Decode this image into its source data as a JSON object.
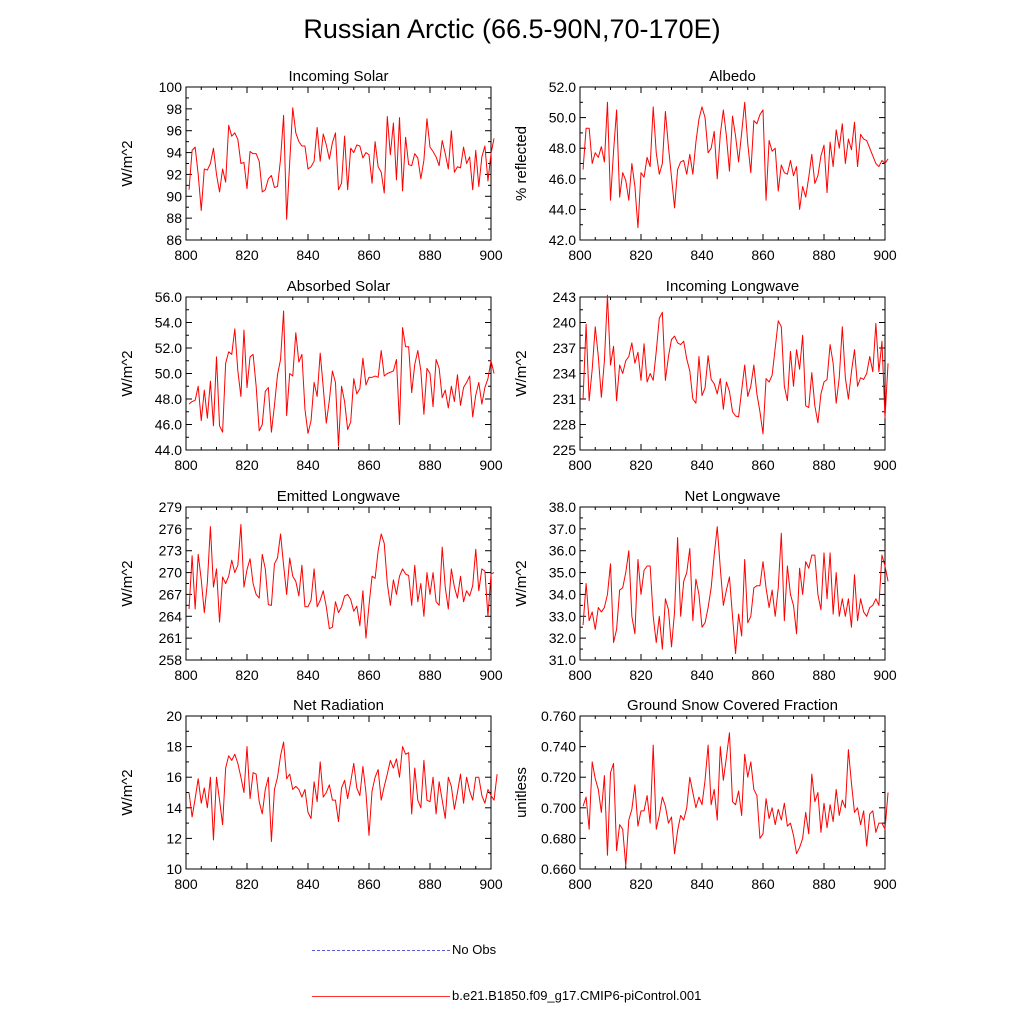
{
  "title": "Russian Arctic (66.5-90N,70-170E)",
  "legend": [
    {
      "label": "No Obs",
      "color": "#5a5ad6",
      "style": "dashed"
    },
    {
      "label": "b.e21.B1850.f09_g17.CMIP6-piControl.001",
      "color": "#ff0000",
      "style": "solid"
    }
  ],
  "chart_data": [
    {
      "type": "line",
      "title": "Incoming Solar",
      "ylabel": "W/m^2",
      "xlim": [
        800,
        900
      ],
      "ylim": [
        86,
        100
      ],
      "xticks": [
        800,
        820,
        840,
        860,
        880,
        900
      ],
      "yticks": [
        86,
        88,
        90,
        92,
        94,
        96,
        98,
        100
      ],
      "ytick_labels": [
        "86",
        "88",
        "90",
        "92",
        "94",
        "96",
        "98",
        "100"
      ],
      "x_start": 801,
      "color": "#ff0000",
      "values": [
        90.6,
        94.2,
        94.5,
        92.0,
        88.7,
        92.5,
        92.4,
        93.0,
        94.4,
        92.0,
        90.4,
        92.5,
        91.3,
        96.5,
        95.5,
        95.8,
        95.2,
        93.0,
        93.1,
        90.7,
        94.1,
        93.9,
        93.9,
        93.2,
        90.4,
        90.6,
        91.6,
        91.9,
        90.8,
        90.9,
        93.4,
        97.4,
        87.9,
        93.1,
        98.1,
        95.8,
        95.0,
        94.6,
        94.6,
        92.5,
        92.7,
        93.2,
        96.3,
        93.2,
        95.7,
        94.7,
        93.4,
        94.9,
        95.8,
        90.6,
        91.2,
        95.5,
        90.6,
        94.4,
        94.0,
        94.7,
        94.6,
        93.5,
        94.0,
        93.8,
        91.2,
        95.0,
        92.7,
        92.2,
        90.3,
        97.3,
        93.8,
        96.7,
        91.5,
        97.2,
        90.5,
        95.4,
        92.9,
        92.8,
        93.9,
        93.5,
        91.6,
        93.3,
        97.1,
        94.5,
        94.1,
        93.6,
        92.8,
        95.1,
        93.9,
        92.5,
        96.0,
        92.2,
        92.7,
        92.6,
        94.5,
        93.0,
        93.6,
        90.6,
        94.2,
        90.9,
        93.6,
        94.6,
        91.4,
        93.9,
        95.3
      ]
    },
    {
      "type": "line",
      "title": "Albedo",
      "ylabel": "% reflected",
      "xlim": [
        800,
        900
      ],
      "ylim": [
        42,
        52
      ],
      "xticks": [
        800,
        820,
        840,
        860,
        880,
        900
      ],
      "yticks": [
        42,
        44,
        46,
        48,
        50,
        52
      ],
      "ytick_labels": [
        "42.0",
        "44.0",
        "46.0",
        "48.0",
        "50.0",
        "52.0"
      ],
      "x_start": 801,
      "color": "#ff0000",
      "values": [
        46.6,
        49.3,
        49.3,
        47.0,
        47.7,
        47.4,
        48.1,
        47.1,
        51.0,
        44.6,
        47.8,
        50.5,
        44.8,
        46.4,
        45.9,
        44.6,
        47.0,
        45.5,
        42.8,
        46.4,
        46.1,
        47.4,
        46.8,
        50.7,
        47.7,
        46.3,
        47.0,
        50.4,
        48.1,
        46.1,
        44.1,
        46.6,
        47.1,
        47.2,
        46.3,
        47.6,
        46.3,
        48.4,
        49.9,
        50.7,
        50.0,
        47.7,
        48.0,
        49.1,
        46.0,
        48.9,
        50.5,
        48.8,
        46.5,
        50.1,
        48.8,
        47.1,
        49.0,
        51.0,
        48.3,
        46.4,
        49.8,
        49.6,
        50.2,
        50.5,
        44.6,
        48.5,
        47.8,
        48.0,
        45.2,
        46.9,
        46.4,
        46.3,
        47.2,
        46.2,
        46.8,
        44.0,
        45.5,
        44.8,
        46.1,
        47.6,
        45.7,
        46.2,
        47.5,
        48.2,
        45.1,
        48.4,
        46.8,
        49.2,
        48.0,
        49.6,
        47.0,
        48.6,
        47.9,
        49.7,
        46.8,
        48.9,
        48.6,
        48.5,
        48.0,
        47.5,
        47.0,
        46.8,
        47.2,
        47.0,
        47.3
      ]
    },
    {
      "type": "line",
      "title": "Absorbed Solar",
      "ylabel": "W/m^2",
      "xlim": [
        800,
        900
      ],
      "ylim": [
        44,
        56
      ],
      "xticks": [
        800,
        820,
        840,
        860,
        880,
        900
      ],
      "yticks": [
        44,
        46,
        48,
        50,
        52,
        54,
        56
      ],
      "ytick_labels": [
        "44.0",
        "46.0",
        "48.0",
        "50.0",
        "52.0",
        "54.0",
        "56.0"
      ],
      "x_start": 801,
      "color": "#ff0000",
      "values": [
        47.6,
        47.8,
        47.9,
        49.0,
        46.3,
        48.7,
        46.5,
        49.4,
        45.9,
        51.3,
        45.9,
        45.4,
        50.8,
        51.7,
        51.5,
        53.5,
        50.2,
        48.2,
        53.4,
        48.9,
        51.3,
        51.5,
        49.0,
        45.5,
        46.0,
        48.6,
        48.9,
        45.4,
        47.5,
        49.9,
        51.1,
        54.9,
        46.7,
        50.0,
        49.8,
        53.2,
        50.9,
        51.5,
        47.2,
        45.3,
        46.3,
        49.3,
        48.2,
        51.6,
        48.9,
        46.1,
        47.9,
        50.2,
        49.3,
        44.3,
        49.0,
        47.8,
        45.6,
        46.2,
        49.6,
        48.4,
        48.8,
        51.2,
        49.1,
        49.7,
        49.7,
        49.8,
        49.7,
        51.8,
        49.8,
        50.0,
        50.1,
        50.2,
        51.1,
        46.0,
        53.6,
        52.1,
        52.1,
        48.5,
        50.7,
        51.8,
        50.2,
        46.8,
        50.4,
        50.0,
        47.4,
        51.1,
        50.4,
        48.1,
        48.7,
        47.3,
        49.0,
        47.8,
        49.9,
        47.5,
        48.9,
        49.3,
        49.8,
        46.6,
        48.3,
        49.3,
        47.6,
        48.9,
        49.6,
        51.0,
        50.0
      ]
    },
    {
      "type": "line",
      "title": "Incoming Longwave",
      "ylabel": "W/m^2",
      "xlim": [
        800,
        900
      ],
      "ylim": [
        225,
        243
      ],
      "xticks": [
        800,
        820,
        840,
        860,
        880,
        900
      ],
      "yticks": [
        225,
        228,
        231,
        234,
        237,
        240,
        243
      ],
      "ytick_labels": [
        "225",
        "228",
        "231",
        "234",
        "237",
        "240",
        "243"
      ],
      "x_start": 801,
      "color": "#ff0000",
      "values": [
        231.0,
        239.8,
        230.8,
        234.5,
        239.5,
        236.0,
        231.2,
        235.5,
        243.2,
        235.0,
        237.2,
        230.8,
        235.0,
        234.0,
        235.5,
        236.0,
        237.6,
        235.2,
        236.5,
        233.2,
        237.5,
        233.0,
        234.0,
        233.2,
        236.6,
        240.5,
        241.2,
        233.2,
        236.0,
        238.0,
        238.4,
        237.6,
        237.4,
        237.8,
        235.7,
        234.3,
        231.0,
        230.5,
        236.0,
        231.4,
        232.3,
        236.1,
        233.3,
        232.8,
        231.6,
        233.4,
        229.8,
        233.0,
        231.9,
        229.5,
        229.0,
        228.9,
        232.0,
        235.0,
        231.3,
        232.5,
        235.0,
        231.6,
        229.5,
        226.9,
        233.4,
        233.0,
        233.8,
        237.0,
        240.2,
        239.5,
        232.5,
        230.8,
        236.6,
        232.5,
        236.8,
        234.5,
        238.5,
        230.2,
        230.0,
        234.1,
        230.2,
        228.2,
        231.6,
        233.0,
        233.3,
        237.4,
        235.2,
        230.5,
        233.5,
        239.5,
        233.5,
        231.0,
        234.2,
        236.8,
        232.5,
        233.5,
        233.3,
        234.0,
        236.0,
        234.2,
        239.9,
        234.2,
        237.8,
        228.8,
        235.2
      ]
    },
    {
      "type": "line",
      "title": "Emitted Longwave",
      "ylabel": "W/m^2",
      "xlim": [
        800,
        900
      ],
      "ylim": [
        258,
        279
      ],
      "xticks": [
        800,
        820,
        840,
        860,
        880,
        900
      ],
      "yticks": [
        258,
        261,
        264,
        267,
        270,
        273,
        276,
        279
      ],
      "ytick_labels": [
        "258",
        "261",
        "264",
        "267",
        "270",
        "273",
        "276",
        "279"
      ],
      "x_start": 801,
      "color": "#ff0000",
      "values": [
        265.0,
        272.3,
        265.0,
        272.5,
        269.0,
        264.5,
        268.6,
        276.3,
        268.0,
        270.5,
        263.2,
        269.4,
        268.5,
        269.5,
        271.7,
        270.0,
        271.0,
        276.6,
        268.0,
        270.4,
        271.9,
        268.5,
        267.0,
        266.5,
        272.5,
        270.5,
        265.6,
        265.5,
        271.2,
        272.0,
        275.3,
        271.0,
        267.0,
        272.0,
        269.5,
        268.8,
        266.8,
        271.0,
        265.3,
        265.3,
        266.2,
        270.5,
        265.3,
        266.2,
        267.5,
        265.3,
        262.3,
        262.5,
        266.0,
        264.5,
        265.3,
        266.8,
        267.0,
        266.3,
        264.7,
        265.4,
        262.7,
        267.5,
        261.0,
        265.5,
        269.5,
        269.2,
        273.0,
        275.3,
        274.0,
        268.5,
        265.5,
        269.0,
        267.0,
        269.5,
        270.5,
        269.8,
        269.6,
        265.5,
        271.0,
        266.0,
        268.5,
        264.0,
        270.0,
        267.0,
        270.0,
        266.0,
        265.5,
        273.5,
        268.0,
        265.0,
        270.5,
        268.0,
        266.5,
        269.5,
        266.0,
        267.5,
        266.8,
        268.2,
        273.2,
        267.5,
        270.5,
        270.2,
        264.0,
        269.8,
        270.0
      ]
    },
    {
      "type": "line",
      "title": "Net Longwave",
      "ylabel": "W/m^2",
      "xlim": [
        800,
        900
      ],
      "ylim": [
        31,
        38
      ],
      "xticks": [
        800,
        820,
        840,
        860,
        880,
        900
      ],
      "yticks": [
        31,
        32,
        33,
        34,
        35,
        36,
        37,
        38
      ],
      "ytick_labels": [
        "31.0",
        "32.0",
        "33.0",
        "34.0",
        "35.0",
        "36.0",
        "37.0",
        "38.0"
      ],
      "x_start": 801,
      "color": "#ff0000",
      "values": [
        32.6,
        34.5,
        32.8,
        33.2,
        32.4,
        33.4,
        33.2,
        33.4,
        34.0,
        35.4,
        31.8,
        32.4,
        34.2,
        34.3,
        35.0,
        36.0,
        33.0,
        32.2,
        35.6,
        34.0,
        35.1,
        35.3,
        35.3,
        33.0,
        31.8,
        33.0,
        31.5,
        33.8,
        33.3,
        31.6,
        33.2,
        36.6,
        33.0,
        34.6,
        35.0,
        36.1,
        32.8,
        34.7,
        34.0,
        32.5,
        32.7,
        33.4,
        34.3,
        35.8,
        37.1,
        35.2,
        33.5,
        34.2,
        34.8,
        33.0,
        31.3,
        33.1,
        32.1,
        35.6,
        32.7,
        33.0,
        34.3,
        34.4,
        34.4,
        35.5,
        34.3,
        33.4,
        34.2,
        33.0,
        34.3,
        36.8,
        32.8,
        35.3,
        34.0,
        33.5,
        32.2,
        35.2,
        34.0,
        35.5,
        35.2,
        35.8,
        35.8,
        34.0,
        33.3,
        35.9,
        33.8,
        35.9,
        33.1,
        35.0,
        33.0,
        33.8,
        33.0,
        33.8,
        32.5,
        34.9,
        32.8,
        33.8,
        33.2,
        33.0,
        33.4,
        33.5,
        33.8,
        33.5,
        35.8,
        35.3,
        34.6
      ]
    },
    {
      "type": "line",
      "title": "Net Radiation",
      "ylabel": "W/m^2",
      "xlim": [
        800,
        900
      ],
      "ylim": [
        10,
        20
      ],
      "xticks": [
        800,
        820,
        840,
        860,
        880,
        900
      ],
      "yticks": [
        10,
        12,
        14,
        16,
        18,
        20
      ],
      "ytick_labels": [
        "10",
        "12",
        "14",
        "16",
        "18",
        "20"
      ],
      "x_start": 801,
      "color": "#ff0000",
      "values": [
        15.0,
        13.4,
        14.6,
        15.9,
        14.3,
        15.3,
        14.0,
        16.0,
        11.9,
        16.0,
        14.5,
        12.9,
        16.6,
        17.4,
        17.1,
        17.5,
        16.9,
        16.0,
        15.0,
        18.0,
        14.6,
        16.3,
        16.2,
        14.4,
        13.6,
        15.2,
        16.0,
        11.8,
        15.2,
        16.0,
        17.4,
        18.3,
        15.9,
        16.2,
        15.2,
        15.4,
        15.2,
        14.7,
        15.2,
        13.7,
        13.3,
        15.7,
        14.4,
        17.0,
        14.7,
        15.0,
        15.5,
        14.5,
        14.5,
        13.1,
        15.3,
        15.8,
        14.6,
        15.7,
        16.9,
        15.3,
        14.8,
        16.7,
        15.0,
        12.2,
        15.1,
        16.0,
        16.5,
        14.5,
        15.4,
        16.2,
        17.1,
        16.6,
        17.2,
        16.0,
        18.0,
        17.5,
        17.6,
        13.6,
        16.6,
        14.5,
        14.0,
        17.1,
        14.5,
        14.4,
        16.0,
        13.6,
        15.7,
        14.5,
        13.3,
        16.0,
        15.4,
        13.9,
        15.0,
        16.2,
        14.3,
        16.0,
        15.1,
        14.5,
        16.0,
        16.0,
        14.8,
        14.3,
        15.2,
        14.8,
        14.5,
        16.2
      ]
    },
    {
      "type": "line",
      "title": "Ground Snow Covered Fraction",
      "ylabel": "unitless",
      "xlim": [
        800,
        900
      ],
      "ylim": [
        0.66,
        0.76
      ],
      "xticks": [
        800,
        820,
        840,
        860,
        880,
        900
      ],
      "yticks": [
        0.66,
        0.68,
        0.7,
        0.72,
        0.74,
        0.76
      ],
      "ytick_labels": [
        "0.660",
        "0.680",
        "0.700",
        "0.720",
        "0.740",
        "0.760"
      ],
      "x_start": 801,
      "color": "#ff0000",
      "values": [
        0.701,
        0.707,
        0.686,
        0.73,
        0.719,
        0.712,
        0.697,
        0.721,
        0.669,
        0.723,
        0.729,
        0.672,
        0.689,
        0.686,
        0.662,
        0.692,
        0.699,
        0.715,
        0.688,
        0.698,
        0.698,
        0.708,
        0.69,
        0.741,
        0.686,
        0.695,
        0.707,
        0.701,
        0.69,
        0.694,
        0.67,
        0.685,
        0.695,
        0.692,
        0.7,
        0.72,
        0.71,
        0.7,
        0.707,
        0.702,
        0.718,
        0.741,
        0.702,
        0.712,
        0.692,
        0.74,
        0.718,
        0.733,
        0.749,
        0.704,
        0.702,
        0.711,
        0.695,
        0.735,
        0.72,
        0.73,
        0.712,
        0.708,
        0.68,
        0.683,
        0.706,
        0.693,
        0.7,
        0.689,
        0.699,
        0.692,
        0.703,
        0.688,
        0.69,
        0.682,
        0.67,
        0.674,
        0.68,
        0.697,
        0.683,
        0.722,
        0.704,
        0.71,
        0.684,
        0.703,
        0.687,
        0.702,
        0.691,
        0.712,
        0.695,
        0.705,
        0.7,
        0.738,
        0.716,
        0.697,
        0.7,
        0.689,
        0.698,
        0.675,
        0.696,
        0.698,
        0.684,
        0.69,
        0.69,
        0.686,
        0.71
      ]
    }
  ]
}
